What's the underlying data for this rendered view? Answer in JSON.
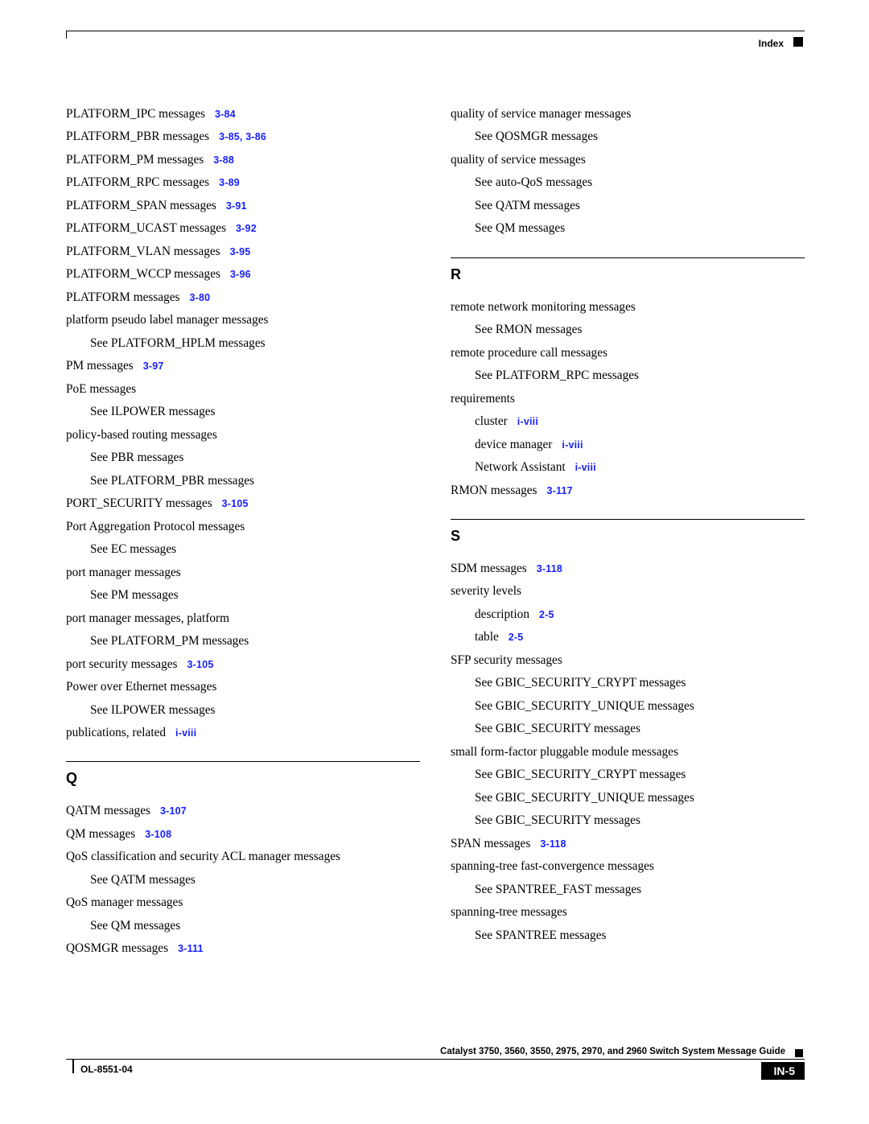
{
  "header": {
    "label": "Index"
  },
  "footer": {
    "guide": "Catalyst 3750, 3560, 3550, 2975, 2970, and 2960 Switch System Message Guide",
    "ol": "OL-8551-04",
    "page": "IN-5"
  },
  "left": [
    {
      "t": "PLATFORM_IPC messages",
      "x": "3-84"
    },
    {
      "t": "PLATFORM_PBR messages",
      "x": "3-85, 3-86"
    },
    {
      "t": "PLATFORM_PM messages",
      "x": "3-88"
    },
    {
      "t": "PLATFORM_RPC messages",
      "x": "3-89"
    },
    {
      "t": "PLATFORM_SPAN messages",
      "x": "3-91"
    },
    {
      "t": "PLATFORM_UCAST messages",
      "x": "3-92"
    },
    {
      "t": "PLATFORM_VLAN messages",
      "x": "3-95"
    },
    {
      "t": "PLATFORM_WCCP messages",
      "x": "3-96"
    },
    {
      "t": "PLATFORM messages",
      "x": "3-80"
    },
    {
      "t": "platform pseudo label manager messages"
    },
    {
      "t": "See PLATFORM_HPLM messages",
      "sub": true
    },
    {
      "t": "PM messages",
      "x": "3-97"
    },
    {
      "t": "PoE messages"
    },
    {
      "t": "See ILPOWER messages",
      "sub": true
    },
    {
      "t": "policy-based routing messages"
    },
    {
      "t": "See PBR messages",
      "sub": true
    },
    {
      "t": "See PLATFORM_PBR messages",
      "sub": true
    },
    {
      "t": "PORT_SECURITY messages",
      "x": "3-105"
    },
    {
      "t": "Port Aggregation Protocol messages"
    },
    {
      "t": "See EC messages",
      "sub": true
    },
    {
      "t": "port manager messages"
    },
    {
      "t": "See PM messages",
      "sub": true
    },
    {
      "t": "port manager messages, platform"
    },
    {
      "t": "See PLATFORM_PM messages",
      "sub": true
    },
    {
      "t": "port security messages",
      "x": "3-105"
    },
    {
      "t": "Power over Ethernet messages"
    },
    {
      "t": "See ILPOWER messages",
      "sub": true
    },
    {
      "t": "publications, related",
      "x": "i-viii"
    },
    {
      "rule": true
    },
    {
      "head": "Q"
    },
    {
      "t": "QATM messages",
      "x": "3-107"
    },
    {
      "t": "QM messages",
      "x": "3-108"
    },
    {
      "t": "QoS classification and security ACL manager messages"
    },
    {
      "t": "See QATM messages",
      "sub": true
    },
    {
      "t": "QoS manager messages"
    },
    {
      "t": "See QM messages",
      "sub": true
    },
    {
      "t": "QOSMGR messages",
      "x": "3-111"
    }
  ],
  "right": [
    {
      "t": "quality of service manager messages"
    },
    {
      "t": "See QOSMGR messages",
      "sub": true
    },
    {
      "t": "quality of service messages"
    },
    {
      "t": "See auto-QoS messages",
      "sub": true
    },
    {
      "t": "See QATM messages",
      "sub": true
    },
    {
      "t": "See QM messages",
      "sub": true
    },
    {
      "rule": true
    },
    {
      "head": "R"
    },
    {
      "t": "remote network monitoring messages"
    },
    {
      "t": "See RMON messages",
      "sub": true
    },
    {
      "t": "remote procedure call messages"
    },
    {
      "t": "See PLATFORM_RPC messages",
      "sub": true
    },
    {
      "t": "requirements"
    },
    {
      "t": "cluster",
      "x": "i-viii",
      "sub": true
    },
    {
      "t": "device manager",
      "x": "i-viii",
      "sub": true
    },
    {
      "t": "Network Assistant",
      "x": "i-viii",
      "sub": true
    },
    {
      "t": "RMON messages",
      "x": "3-117"
    },
    {
      "rule": true
    },
    {
      "head": "S"
    },
    {
      "t": "SDM messages",
      "x": "3-118"
    },
    {
      "t": "severity levels"
    },
    {
      "t": "description",
      "x": "2-5",
      "sub": true
    },
    {
      "t": "table",
      "x": "2-5",
      "sub": true
    },
    {
      "t": "SFP security messages"
    },
    {
      "t": "See GBIC_SECURITY_CRYPT messages",
      "sub": true
    },
    {
      "t": "See GBIC_SECURITY_UNIQUE messages",
      "sub": true
    },
    {
      "t": "See GBIC_SECURITY messages",
      "sub": true
    },
    {
      "t": "small form-factor pluggable module messages"
    },
    {
      "t": "See GBIC_SECURITY_CRYPT messages",
      "sub": true
    },
    {
      "t": "See GBIC_SECURITY_UNIQUE messages",
      "sub": true
    },
    {
      "t": "See GBIC_SECURITY messages",
      "sub": true
    },
    {
      "t": "SPAN messages",
      "x": "3-118"
    },
    {
      "t": "spanning-tree fast-convergence messages"
    },
    {
      "t": "See SPANTREE_FAST messages",
      "sub": true
    },
    {
      "t": "spanning-tree messages"
    },
    {
      "t": "See SPANTREE messages",
      "sub": true
    }
  ]
}
